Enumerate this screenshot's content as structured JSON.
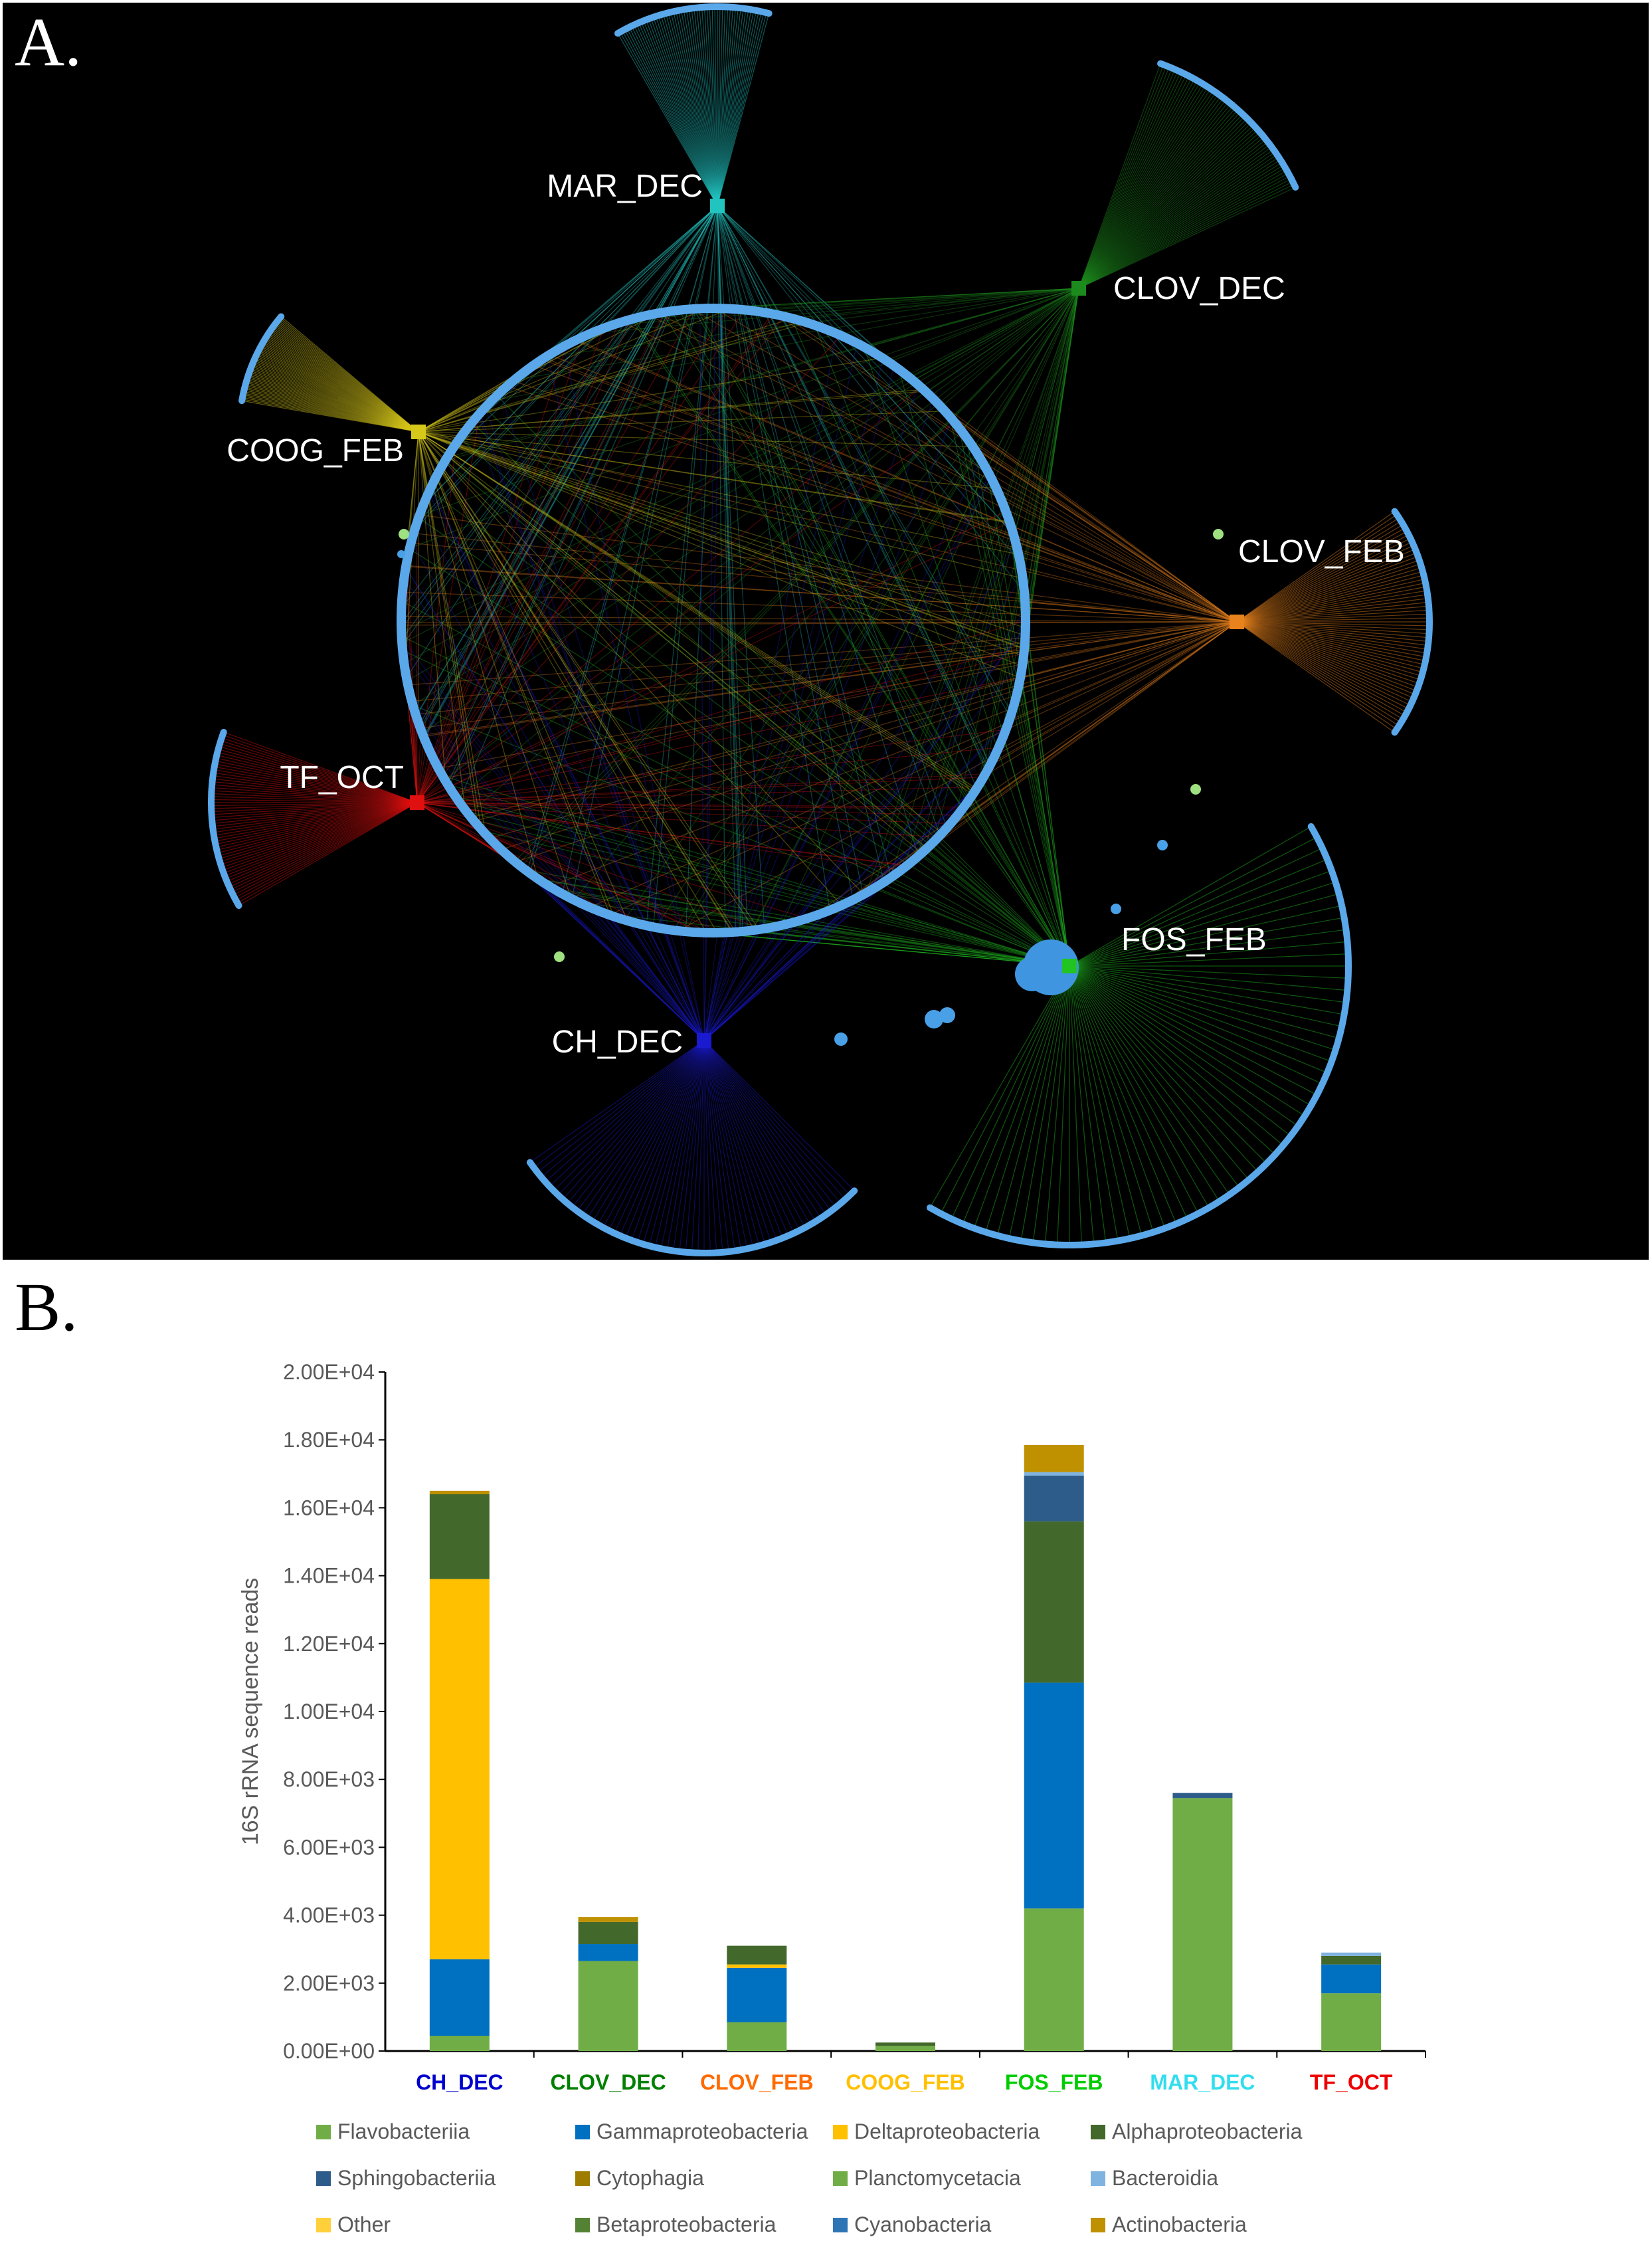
{
  "panel_a": {
    "label": "A.",
    "nodes": [
      {
        "id": "MAR_DEC",
        "label": "MAR_DEC",
        "color": "#22c4c0"
      },
      {
        "id": "CLOV_DEC",
        "label": "CLOV_DEC",
        "color": "#1d8a1d"
      },
      {
        "id": "CLOV_FEB",
        "label": "CLOV_FEB",
        "color": "#e8821c"
      },
      {
        "id": "FOS_FEB",
        "label": "FOS_FEB",
        "color": "#22c422"
      },
      {
        "id": "CH_DEC",
        "label": "CH_DEC",
        "color": "#1a1ad0"
      },
      {
        "id": "TF_OCT",
        "label": "TF_OCT",
        "color": "#e01010"
      },
      {
        "id": "COOG_FEB",
        "label": "COOG_FEB",
        "color": "#d6c81a"
      }
    ]
  },
  "panel_b": {
    "label": "B.",
    "chart_data": {
      "type": "bar",
      "stacked": true,
      "ylabel": "16S rRNA sequence reads",
      "ylim": [
        0,
        20000
      ],
      "ytick_labels": [
        "0.00E+00",
        "2.00E+03",
        "4.00E+03",
        "6.00E+03",
        "8.00E+03",
        "1.00E+04",
        "1.20E+04",
        "1.40E+04",
        "1.60E+04",
        "1.80E+04",
        "2.00E+04"
      ],
      "categories": [
        "CH_DEC",
        "CLOV_DEC",
        "CLOV_FEB",
        "COOG_FEB",
        "FOS_FEB",
        "MAR_DEC",
        "TF_OCT"
      ],
      "category_colors": [
        "#0000cc",
        "#008000",
        "#ff6a00",
        "#ffc000",
        "#00cc00",
        "#33ddee",
        "#ee0000"
      ],
      "series": [
        {
          "name": "Flavobacteriia",
          "color": "#70ad47",
          "values": [
            450,
            2650,
            850,
            150,
            4200,
            7450,
            1700
          ]
        },
        {
          "name": "Gammaproteobacteria",
          "color": "#0070c0",
          "values": [
            2250,
            500,
            1600,
            0,
            6650,
            0,
            850
          ]
        },
        {
          "name": "Deltaproteobacteria",
          "color": "#ffc000",
          "values": [
            11200,
            0,
            100,
            0,
            0,
            0,
            0
          ]
        },
        {
          "name": "Alphaproteobacteria",
          "color": "#43682b",
          "values": [
            2500,
            650,
            550,
            100,
            4750,
            0,
            250
          ]
        },
        {
          "name": "Sphingobacteriia",
          "color": "#2e5c8a",
          "values": [
            0,
            0,
            0,
            0,
            1350,
            150,
            0
          ]
        },
        {
          "name": "Cytophagia",
          "color": "#9e7c00",
          "values": [
            0,
            0,
            0,
            0,
            0,
            0,
            0
          ]
        },
        {
          "name": "Planctomycetacia",
          "color": "#70ad47",
          "values": [
            0,
            0,
            0,
            0,
            0,
            0,
            0
          ]
        },
        {
          "name": "Bacteroidia",
          "color": "#7fb3e0",
          "values": [
            0,
            0,
            0,
            0,
            100,
            0,
            100
          ]
        },
        {
          "name": "Other",
          "color": "#ffd03a",
          "values": [
            0,
            0,
            0,
            0,
            0,
            0,
            0
          ]
        },
        {
          "name": "Betaproteobacteria",
          "color": "#548235",
          "values": [
            0,
            0,
            0,
            0,
            0,
            0,
            0
          ]
        },
        {
          "name": "Cyanobacteria",
          "color": "#2e75b6",
          "values": [
            0,
            0,
            0,
            0,
            0,
            0,
            0
          ]
        },
        {
          "name": "Actinobacteria",
          "color": "#bf9000",
          "values": [
            100,
            150,
            0,
            0,
            800,
            0,
            0
          ]
        }
      ],
      "legend_position": "bottom"
    }
  }
}
